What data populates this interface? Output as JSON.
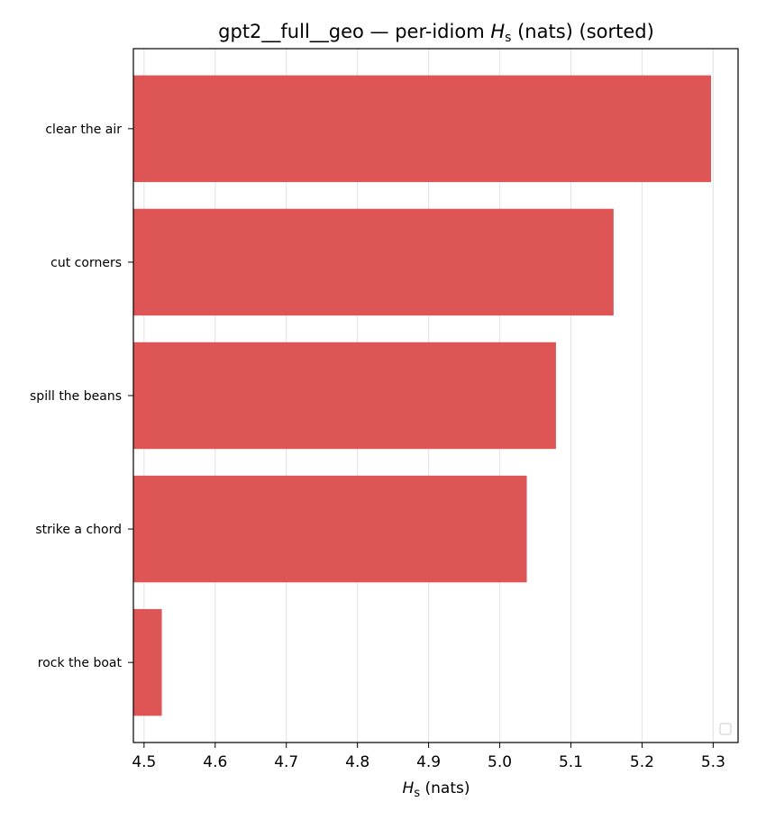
{
  "colors": {
    "bar": "#dd5555",
    "grid": "#e6e6e6",
    "axis": "#000000"
  },
  "chart_data": {
    "type": "bar",
    "orientation": "horizontal",
    "title": {
      "pre": "gpt2__full__geo — per-idiom ",
      "sym": "H",
      "sub": "s",
      "post": " (nats) (sorted)"
    },
    "xlabel": {
      "sym": "H",
      "sub": "s",
      "post": " (nats)"
    },
    "ylabel": "",
    "categories": [
      "clear the air",
      "cut corners",
      "spill the beans",
      "strike a chord",
      "rock the boat"
    ],
    "values": [
      5.297,
      5.16,
      5.079,
      5.038,
      4.525
    ],
    "xlim": [
      4.485,
      5.335
    ],
    "xticks": [
      4.5,
      4.6,
      4.7,
      4.8,
      4.9,
      5.0,
      5.1,
      5.2,
      5.3
    ],
    "xtick_labels": [
      "4.5",
      "4.6",
      "4.7",
      "4.8",
      "4.9",
      "5.0",
      "5.1",
      "5.2",
      "5.3"
    ],
    "grid": "x",
    "legend": "lower-right (empty)"
  }
}
